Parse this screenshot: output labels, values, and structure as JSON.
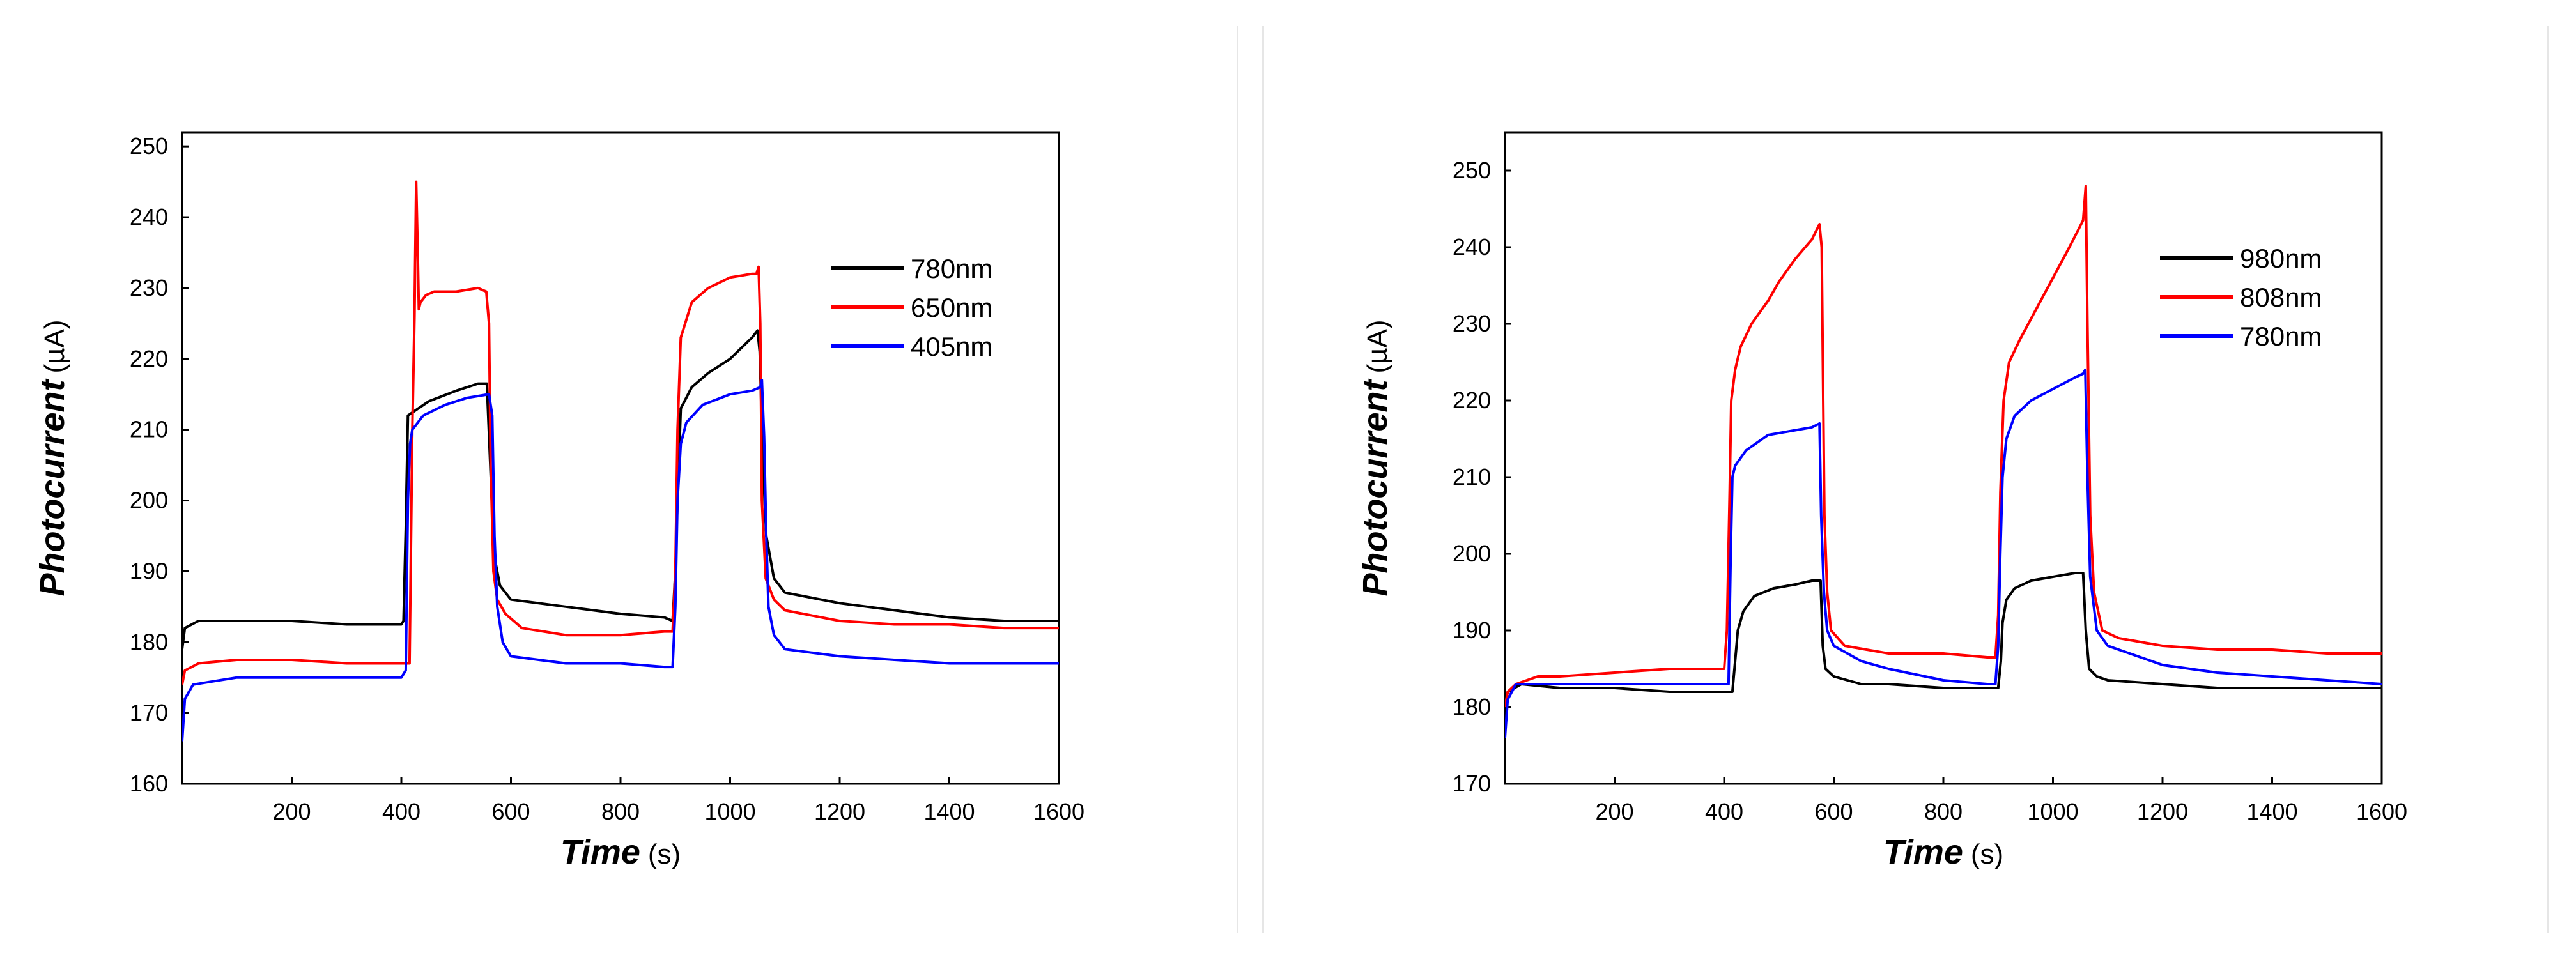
{
  "chart_data": [
    {
      "type": "line",
      "xlabel": "Time",
      "xlabel_unit": "(s)",
      "ylabel": "Photocurrent",
      "ylabel_unit": "(µA)",
      "xlim": [
        0,
        1600
      ],
      "ylim": [
        160,
        252
      ],
      "xticks": [
        200,
        400,
        600,
        800,
        1000,
        1200,
        1400,
        1600
      ],
      "yticks": [
        160,
        170,
        180,
        190,
        200,
        210,
        220,
        230,
        240,
        250
      ],
      "grid": false,
      "legend_position": "top-right",
      "series": [
        {
          "name": "780nm",
          "color": "#000000",
          "x": [
            0,
            5,
            30,
            100,
            200,
            300,
            400,
            404,
            408,
            412,
            450,
            500,
            540,
            556,
            565,
            570,
            580,
            600,
            700,
            800,
            880,
            895,
            900,
            904,
            910,
            930,
            960,
            1000,
            1040,
            1050,
            1054,
            1060,
            1066,
            1080,
            1100,
            1200,
            1300,
            1400,
            1500,
            1600
          ],
          "y": [
            179,
            182,
            183,
            183,
            183,
            182.5,
            182.5,
            183,
            196,
            212,
            214,
            215.5,
            216.5,
            216.5,
            200,
            192,
            188,
            186,
            185,
            184,
            183.5,
            183,
            190,
            200,
            213,
            216,
            218,
            220,
            223,
            224,
            221,
            205,
            195,
            189,
            187,
            185.5,
            184.5,
            183.5,
            183,
            183
          ]
        },
        {
          "name": "650nm",
          "color": "#ff0000",
          "x": [
            0,
            5,
            30,
            100,
            200,
            300,
            400,
            415,
            420,
            424,
            427,
            430,
            432,
            435,
            445,
            460,
            500,
            540,
            555,
            560,
            563,
            568,
            575,
            590,
            620,
            700,
            800,
            880,
            895,
            900,
            904,
            910,
            930,
            960,
            1000,
            1040,
            1048,
            1052,
            1055,
            1058,
            1065,
            1080,
            1100,
            1200,
            1300,
            1400,
            1500,
            1600
          ],
          "y": [
            174,
            176,
            177,
            177.5,
            177.5,
            177,
            177,
            177,
            210,
            226,
            245,
            235,
            227,
            228,
            229,
            229.5,
            229.5,
            230,
            229.5,
            225,
            205,
            190,
            186,
            184,
            182,
            181,
            181,
            181.5,
            181.5,
            190,
            210,
            223,
            228,
            230,
            231.5,
            232,
            232,
            233,
            225,
            200,
            189,
            186,
            184.5,
            183,
            182.5,
            182.5,
            182,
            182
          ]
        },
        {
          "name": "405nm",
          "color": "#0000ff",
          "x": [
            0,
            5,
            20,
            60,
            100,
            200,
            300,
            400,
            408,
            412,
            416,
            420,
            440,
            480,
            520,
            560,
            566,
            570,
            575,
            585,
            600,
            700,
            800,
            880,
            895,
            900,
            904,
            910,
            920,
            950,
            1000,
            1040,
            1055,
            1058,
            1062,
            1066,
            1070,
            1080,
            1100,
            1200,
            1300,
            1400,
            1500,
            1600
          ],
          "y": [
            166,
            172,
            174,
            174.5,
            175,
            175,
            175,
            175,
            176,
            200,
            208,
            210,
            212,
            213.5,
            214.5,
            215,
            212,
            195,
            185,
            180,
            178,
            177,
            177,
            176.5,
            176.5,
            185,
            200,
            208,
            211,
            213.5,
            215,
            215.5,
            216,
            217,
            209,
            195,
            185,
            181,
            179,
            178,
            177.5,
            177,
            177,
            177
          ]
        }
      ]
    },
    {
      "type": "line",
      "xlabel": "Time",
      "xlabel_unit": "(s)",
      "ylabel": "Photocurrent",
      "ylabel_unit": "(µA)",
      "xlim": [
        0,
        1600
      ],
      "ylim": [
        170,
        255
      ],
      "xticks": [
        200,
        400,
        600,
        800,
        1000,
        1200,
        1400,
        1600
      ],
      "yticks": [
        170,
        180,
        190,
        200,
        210,
        220,
        230,
        240,
        250
      ],
      "grid": false,
      "legend_position": "top-right",
      "series": [
        {
          "name": "980nm",
          "color": "#000000",
          "x": [
            0,
            5,
            30,
            100,
            200,
            300,
            400,
            410,
            415,
            420,
            425,
            435,
            455,
            490,
            530,
            560,
            576,
            580,
            585,
            600,
            650,
            700,
            800,
            900,
            905,
            908,
            915,
            930,
            960,
            1000,
            1040,
            1055,
            1060,
            1066,
            1080,
            1100,
            1200,
            1300,
            1400,
            1500,
            1600
          ],
          "y": [
            180,
            182,
            183,
            182.5,
            182.5,
            182,
            182,
            182,
            182,
            186,
            190,
            192.5,
            194.5,
            195.5,
            196,
            196.5,
            196.5,
            188,
            185,
            184,
            183,
            183,
            182.5,
            182.5,
            186,
            191,
            194,
            195.5,
            196.5,
            197,
            197.5,
            197.5,
            190,
            185,
            184,
            183.5,
            183,
            182.5,
            182.5,
            182.5,
            182.5
          ]
        },
        {
          "name": "808nm",
          "color": "#ff0000",
          "x": [
            0,
            5,
            20,
            60,
            100,
            200,
            300,
            400,
            405,
            410,
            413,
            420,
            430,
            450,
            480,
            500,
            530,
            560,
            574,
            578,
            583,
            588,
            595,
            620,
            700,
            800,
            880,
            895,
            900,
            904,
            910,
            920,
            940,
            970,
            1000,
            1030,
            1055,
            1060,
            1063,
            1068,
            1075,
            1090,
            1120,
            1200,
            1300,
            1400,
            1500,
            1600
          ],
          "y": [
            180,
            182,
            183,
            184,
            184,
            184.5,
            185,
            185,
            190,
            208,
            220,
            224,
            227,
            230,
            233,
            235.5,
            238.5,
            241,
            243,
            240,
            205,
            195,
            190,
            188,
            187,
            187,
            186.5,
            186.5,
            192,
            208,
            220,
            225,
            228,
            232,
            236,
            240,
            243.5,
            248,
            230,
            205,
            195,
            190,
            189,
            188,
            187.5,
            187.5,
            187,
            187
          ]
        },
        {
          "name": "780nm",
          "color": "#0000ff",
          "x": [
            0,
            5,
            20,
            100,
            200,
            300,
            400,
            408,
            412,
            415,
            420,
            440,
            480,
            520,
            560,
            574,
            577,
            582,
            588,
            600,
            650,
            700,
            800,
            880,
            895,
            900,
            904,
            908,
            915,
            930,
            960,
            1000,
            1040,
            1055,
            1059,
            1063,
            1068,
            1080,
            1100,
            1200,
            1300,
            1400,
            1500,
            1600
          ],
          "y": [
            176,
            181,
            183,
            183,
            183,
            183,
            183,
            183,
            200,
            210,
            211.5,
            213.5,
            215.5,
            216,
            216.5,
            217,
            205,
            195,
            190,
            188,
            186,
            185,
            183.5,
            183,
            183,
            188,
            200,
            210,
            215,
            218,
            220,
            221.5,
            223,
            223.5,
            224,
            210,
            197,
            190,
            188,
            185.5,
            184.5,
            184,
            183.5,
            183
          ]
        }
      ]
    }
  ]
}
